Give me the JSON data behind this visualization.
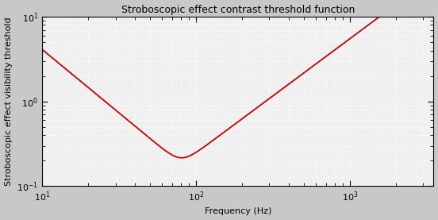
{
  "title": "Stroboscopic effect contrast threshold function",
  "xlabel": "Frequency (Hz)",
  "ylabel": "Stroboscopic effect visibility threshold",
  "xlim": [
    10,
    3500
  ],
  "ylim": [
    0.1,
    10
  ],
  "line_color": "#cc0000",
  "line_width": 1.3,
  "fig_bg_color": "#c8c8c8",
  "plot_bg_color": "#f0f0f0",
  "grid_color": "#ffffff",
  "grid_linestyle": ":",
  "grid_linewidth": 0.7,
  "curve_params": {
    "f_min": 80,
    "y_min": 0.182,
    "low_slope": -1.5,
    "high_slope": 1.35,
    "smooth_k": 4.0
  },
  "title_fontsize": 9,
  "label_fontsize": 8,
  "tick_fontsize": 8
}
